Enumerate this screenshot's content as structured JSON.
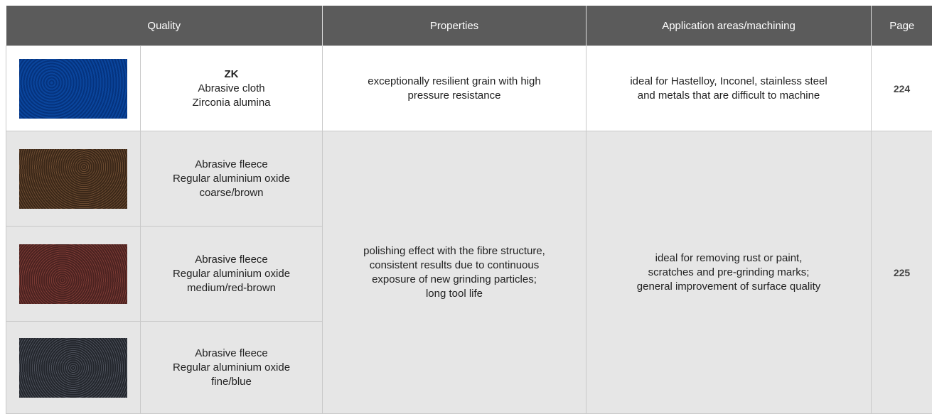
{
  "header": {
    "quality": "Quality",
    "properties": "Properties",
    "application": "Application areas/machining",
    "page": "Page"
  },
  "table": {
    "rows": [
      {
        "name": "ZK",
        "quality": [
          "Abrasive cloth",
          "Zirconia alumina"
        ],
        "properties": [
          "exceptionally resilient grain with high",
          "pressure resistance"
        ],
        "application": [
          "ideal for Hastelloy, Inconel, stainless steel",
          "and metals that are difficult to machine"
        ],
        "page": "224"
      },
      {
        "quality": [
          "Abrasive fleece",
          "Regular aluminium oxide",
          "coarse/brown"
        ],
        "properties": [
          "polishing effect with the fibre structure,",
          "consistent results due to continuous",
          "exposure of new grinding particles;",
          "long tool life"
        ],
        "application": [
          "ideal for removing rust or paint,",
          "scratches and pre-grinding marks;",
          "general improvement of surface quality"
        ],
        "page": "225"
      },
      {
        "quality": [
          "Abrasive fleece",
          "Regular aluminium oxide",
          "medium/red-brown"
        ]
      },
      {
        "quality": [
          "Abrasive fleece",
          "Regular aluminium oxide",
          "fine/blue"
        ]
      }
    ]
  }
}
